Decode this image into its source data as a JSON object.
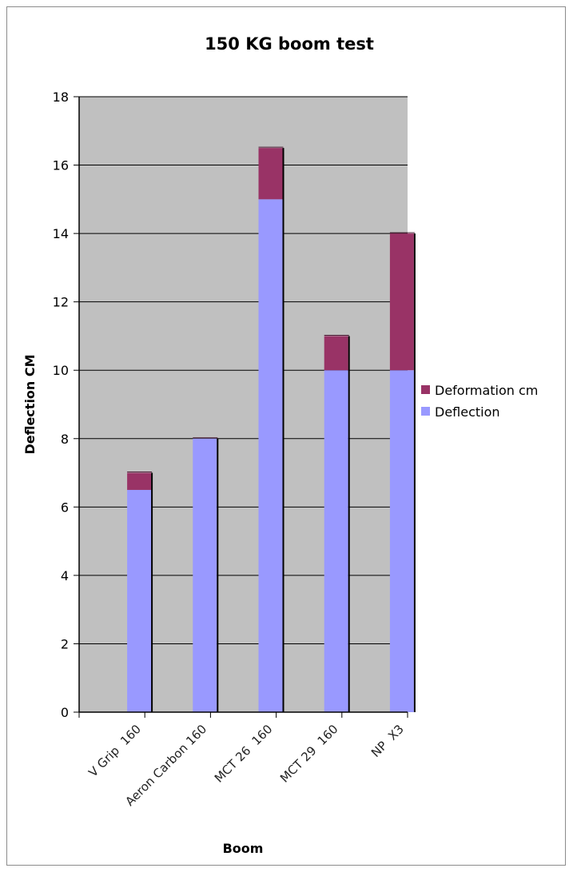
{
  "chart_data": {
    "type": "bar",
    "stacked": true,
    "title": "150 KG boom test",
    "xlabel": "Boom",
    "ylabel": "Deflection CM",
    "ylim": [
      0,
      18
    ],
    "yticks": [
      0,
      2,
      4,
      6,
      8,
      10,
      12,
      14,
      16,
      18
    ],
    "grid": true,
    "legend_position": "right",
    "categories": [
      "V Grip  160",
      "Aeron Carbon 160",
      "MCT 26  160",
      "MCT 29  160",
      "NP  X3"
    ],
    "series": [
      {
        "name": "Deflection",
        "color": "#9999ff",
        "values": [
          6.5,
          8,
          15,
          10,
          10
        ]
      },
      {
        "name": "Deformation cm",
        "color": "#993366",
        "values": [
          0.5,
          0,
          1.5,
          1,
          4
        ]
      }
    ],
    "plot_background": "#c0c0c0"
  }
}
